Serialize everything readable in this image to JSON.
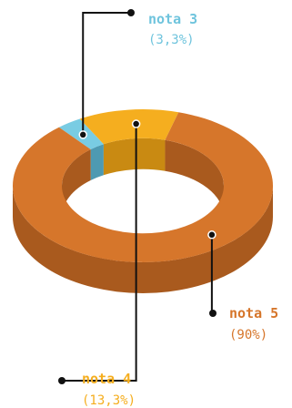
{
  "chart_data": {
    "type": "pie",
    "variant": "3d-donut",
    "title": "",
    "slices": [
      {
        "name": "nota 3",
        "value": 3.3,
        "label": "(3,3%)",
        "color": "#79CCE3",
        "side_color": "#4E9AB2"
      },
      {
        "name": "nota 4",
        "value": 13.3,
        "label": "(13,3%)",
        "color": "#F5AE1F",
        "side_color": "#C98A12"
      },
      {
        "name": "nota 5",
        "value": 90,
        "label": "(90%)",
        "color": "#D6762B",
        "side_color": "#A95A1E"
      }
    ],
    "legend": "callout-labels"
  }
}
